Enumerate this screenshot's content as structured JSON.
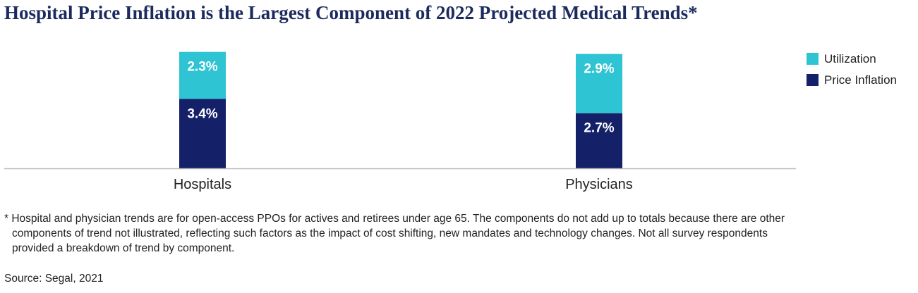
{
  "title": "Hospital Price Inflation is the Largest Component of 2022 Projected Medical Trends*",
  "footnote": "* Hospital and physician trends are for open-access PPOs for actives and retirees under age 65. The components do not add up to totals because there are other components of trend not illustrated, reflecting such factors as the impact of cost shifting, new mandates and technology changes. Not all survey respondents provided a breakdown of trend by component.",
  "source": "Source: Segal, 2021",
  "colors": {
    "utilization": "#2ec4d3",
    "price_inflation": "#142169",
    "axis": "#bbbbbb"
  },
  "chart_data": {
    "type": "bar",
    "stacked": true,
    "categories": [
      "Hospitals",
      "Physicians"
    ],
    "series": [
      {
        "name": "Price Inflation",
        "values": [
          3.4,
          2.7
        ],
        "labels": [
          "3.4%",
          "2.7%"
        ],
        "color": "#142169"
      },
      {
        "name": "Utilization",
        "values": [
          2.3,
          2.9
        ],
        "labels": [
          "2.3%",
          "2.9%"
        ],
        "color": "#2ec4d3"
      }
    ],
    "legend": {
      "position": "top-right",
      "entries": [
        "Utilization",
        "Price Inflation"
      ]
    },
    "ylim": [
      0,
      5.8
    ],
    "grid": false
  }
}
